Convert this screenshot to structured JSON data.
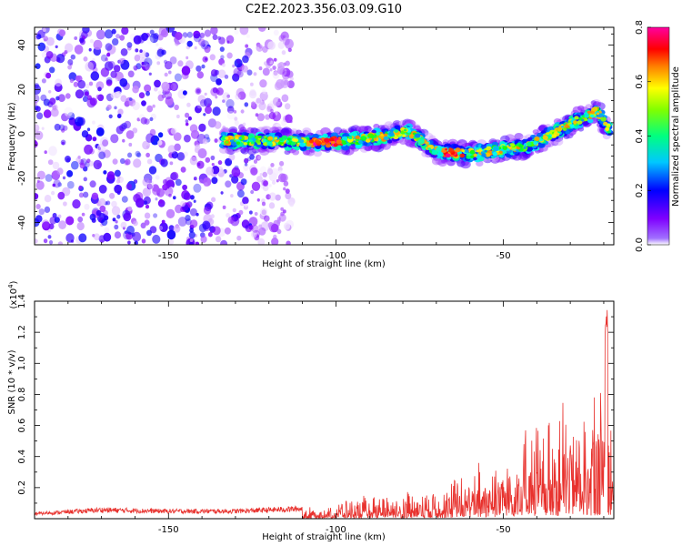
{
  "figure": {
    "title": "C2E2.2023.356.03.09.G10"
  },
  "chart_data": [
    {
      "type": "heatmap",
      "title": "C2E2.2023.356.03.09.G10",
      "xlabel": "Height of straight line (km)",
      "ylabel": "Frequency (Hz)",
      "xlim": [
        -190,
        -17
      ],
      "ylim": [
        -50,
        48
      ],
      "x_ticks": [
        -150,
        -100,
        -50
      ],
      "y_ticks": [
        -40,
        -20,
        0,
        20,
        40
      ],
      "grid": false,
      "colorbar": {
        "label": "Normalized spectral amplitude",
        "range": [
          0.0,
          0.8
        ],
        "ticks": [
          0.0,
          0.2,
          0.4,
          0.6,
          0.8
        ],
        "colormap": "rainbow",
        "colors": [
          "#ffffff",
          "#7f00ff",
          "#0000ff",
          "#00ffff",
          "#00ff00",
          "#ffff00",
          "#ff8000",
          "#ff0000",
          "#ff00ff"
        ]
      },
      "ridge": {
        "description_points": [
          {
            "x": -134,
            "y": -3
          },
          {
            "x": -120,
            "y": -3
          },
          {
            "x": -105,
            "y": -4
          },
          {
            "x": -95,
            "y": -3
          },
          {
            "x": -85,
            "y": -1
          },
          {
            "x": -78,
            "y": 1
          },
          {
            "x": -70,
            "y": -8
          },
          {
            "x": -60,
            "y": -9
          },
          {
            "x": -50,
            "y": -7
          },
          {
            "x": -42,
            "y": -5
          },
          {
            "x": -35,
            "y": 0
          },
          {
            "x": -28,
            "y": 6
          },
          {
            "x": -22,
            "y": 10
          },
          {
            "x": -18,
            "y": 1
          }
        ],
        "peak_value": 0.8
      },
      "noise_region": {
        "x_from": -190,
        "x_to": -113,
        "level": 0.2
      }
    },
    {
      "type": "line",
      "xlabel": "Height of straight line (km)",
      "ylabel": "SNR (10 * v/v)",
      "y_scale_label": "(x10^4)",
      "scale_prefix": "(x10",
      "scale_exp": "4",
      "scale_suffix": ")",
      "xlim": [
        -190,
        -17
      ],
      "ylim": [
        0,
        1.4
      ],
      "x_ticks": [
        -150,
        -100,
        -50
      ],
      "y_ticks": [
        0.2,
        0.4,
        0.6,
        0.8,
        1.0,
        1.2,
        1.4
      ],
      "grid": false,
      "series": [
        {
          "color": "#e8322e",
          "envelope": [
            {
              "x": -190,
              "y": 0.04
            },
            {
              "x": -170,
              "y": 0.07
            },
            {
              "x": -150,
              "y": 0.06
            },
            {
              "x": -130,
              "y": 0.06
            },
            {
              "x": -110,
              "y": 0.08
            },
            {
              "x": -100,
              "y": 0.12
            },
            {
              "x": -90,
              "y": 0.15
            },
            {
              "x": -80,
              "y": 0.2
            },
            {
              "x": -70,
              "y": 0.22
            },
            {
              "x": -60,
              "y": 0.35
            },
            {
              "x": -50,
              "y": 0.5
            },
            {
              "x": -40,
              "y": 0.7
            },
            {
              "x": -30,
              "y": 0.8
            },
            {
              "x": -22,
              "y": 0.9
            },
            {
              "x": -19,
              "y": 1.38
            },
            {
              "x": -17,
              "y": 0.6
            }
          ]
        }
      ]
    }
  ]
}
